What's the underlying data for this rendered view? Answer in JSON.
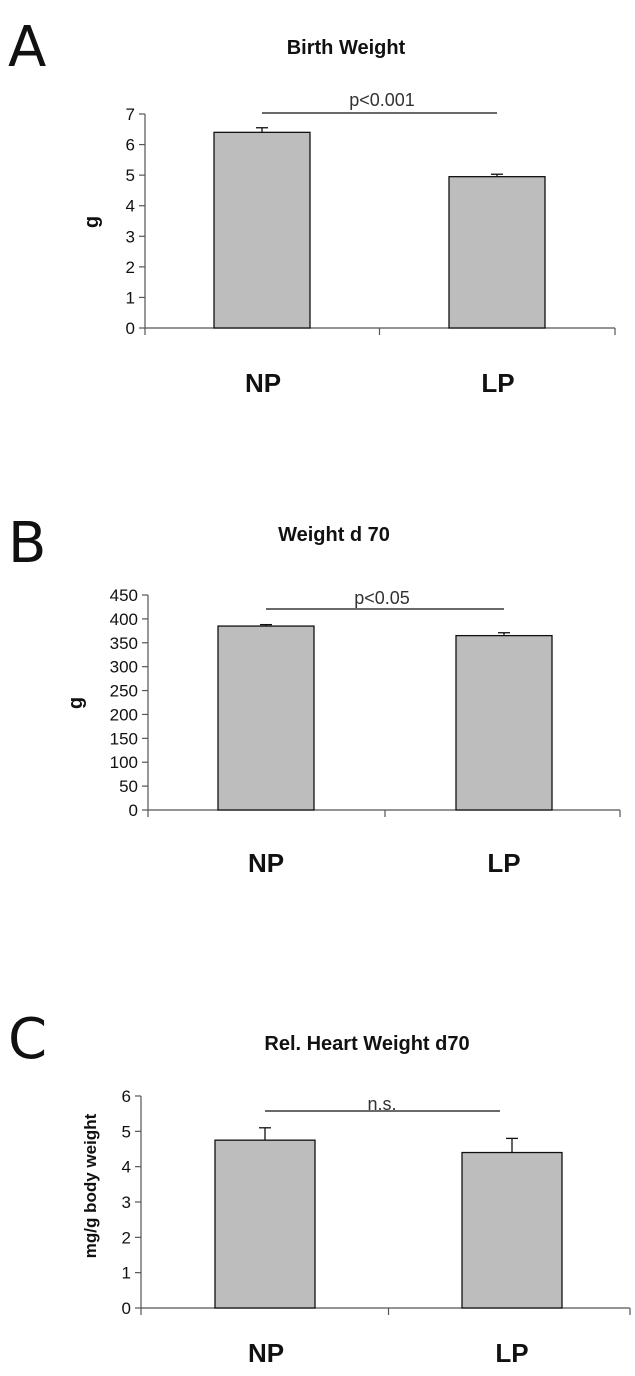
{
  "chart_data": [
    {
      "panel": "A",
      "type": "bar",
      "title": "Birth Weight",
      "xlabel": "",
      "ylabel": "g",
      "categories": [
        "NP",
        "LP"
      ],
      "values": [
        6.4,
        4.95
      ],
      "errors": [
        0.15,
        0.08
      ],
      "ylim": [
        0,
        7
      ],
      "yticks": [
        "0",
        "1",
        "2",
        "3",
        "4",
        "5",
        "6",
        "7"
      ],
      "significance": "p<0.001",
      "grid": false
    },
    {
      "panel": "B",
      "type": "bar",
      "title": "Weight d 70",
      "xlabel": "",
      "ylabel": "g",
      "categories": [
        "NP",
        "LP"
      ],
      "values": [
        385,
        365
      ],
      "errors": [
        3,
        6
      ],
      "ylim": [
        0,
        450
      ],
      "yticks": [
        "0",
        "50",
        "100",
        "150",
        "200",
        "250",
        "300",
        "350",
        "400",
        "450"
      ],
      "significance": "p<0.05",
      "grid": false
    },
    {
      "panel": "C",
      "type": "bar",
      "title": "Rel. Heart Weight d70",
      "xlabel": "",
      "ylabel": "mg/g body weight",
      "categories": [
        "NP",
        "LP"
      ],
      "values": [
        4.75,
        4.4
      ],
      "errors": [
        0.35,
        0.4
      ],
      "ylim": [
        0,
        6
      ],
      "yticks": [
        "0",
        "1",
        "2",
        "3",
        "4",
        "5",
        "6"
      ],
      "significance": "n.s.",
      "grid": false
    }
  ]
}
